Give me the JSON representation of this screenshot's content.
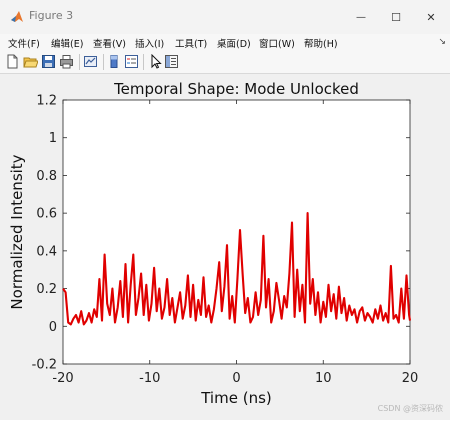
{
  "window": {
    "title": "Figure 3",
    "minimize_glyph": "—",
    "maximize_glyph": "☐",
    "close_glyph": "✕"
  },
  "menu": {
    "items": [
      {
        "id": "file",
        "label": "文件(F)"
      },
      {
        "id": "edit",
        "label": "编辑(E)"
      },
      {
        "id": "view",
        "label": "查看(V)"
      },
      {
        "id": "insert",
        "label": "插入(I)"
      },
      {
        "id": "tools",
        "label": "工具(T)"
      },
      {
        "id": "desktop",
        "label": "桌面(D)"
      },
      {
        "id": "window",
        "label": "窗口(W)"
      },
      {
        "id": "help",
        "label": "帮助(H)"
      }
    ],
    "overflow_glyph": "↘"
  },
  "toolbar": {
    "icons": [
      "new-figure-icon",
      "open-file-icon",
      "save-icon",
      "print-icon",
      "link-plot-icon",
      "insert-colorbar-icon",
      "insert-legend-icon",
      "edit-plot-icon",
      "property-inspector-icon"
    ]
  },
  "watermark": "CSDN @资深码侬",
  "chart_data": {
    "type": "line",
    "title": "Temporal Shape: Mode Unlocked",
    "xlabel": "Time (ns)",
    "ylabel": "Normalized Intensity",
    "xlim": [
      -20,
      20
    ],
    "ylim": [
      -0.2,
      1.2
    ],
    "xticks": [
      -20,
      -10,
      0,
      10,
      20
    ],
    "yticks": [
      -0.2,
      0,
      0.2,
      0.4,
      0.6,
      0.8,
      1,
      1.2
    ],
    "xtick_labels": [
      "-20",
      "-10",
      "0",
      "10",
      "20"
    ],
    "ytick_labels": [
      "-0.2",
      "0",
      "0.2",
      "0.4",
      "0.6",
      "0.8",
      "1",
      "1.2"
    ],
    "grid": false,
    "line_color": "#e00000",
    "series": [
      {
        "x": [
          -20,
          -19.7,
          -19.4,
          -19.1,
          -18.8,
          -18.5,
          -18.2,
          -17.9,
          -17.6,
          -17.3,
          -17.0,
          -16.7,
          -16.4,
          -16.1,
          -15.8,
          -15.5,
          -15.2,
          -14.9,
          -14.6,
          -14.3,
          -14.0,
          -13.7,
          -13.4,
          -13.1,
          -12.8,
          -12.5,
          -12.2,
          -11.9,
          -11.6,
          -11.3,
          -11.0,
          -10.7,
          -10.4,
          -10.1,
          -9.8,
          -9.5,
          -9.2,
          -8.9,
          -8.6,
          -8.3,
          -8.0,
          -7.7,
          -7.4,
          -7.1,
          -6.8,
          -6.5,
          -6.2,
          -5.9,
          -5.6,
          -5.3,
          -5.0,
          -4.7,
          -4.4,
          -4.1,
          -3.8,
          -3.5,
          -3.2,
          -2.9,
          -2.6,
          -2.3,
          -2.0,
          -1.7,
          -1.4,
          -1.1,
          -0.8,
          -0.5,
          -0.2,
          0.1,
          0.4,
          0.7,
          1.0,
          1.3,
          1.6,
          1.9,
          2.2,
          2.5,
          2.8,
          3.1,
          3.4,
          3.7,
          4.0,
          4.3,
          4.6,
          4.9,
          5.2,
          5.5,
          5.8,
          6.1,
          6.4,
          6.7,
          7.0,
          7.3,
          7.6,
          7.9,
          8.2,
          8.5,
          8.8,
          9.1,
          9.4,
          9.7,
          10.0,
          10.3,
          10.6,
          10.9,
          11.2,
          11.5,
          11.8,
          12.1,
          12.4,
          12.7,
          13.0,
          13.3,
          13.6,
          13.9,
          14.2,
          14.5,
          14.8,
          15.1,
          15.4,
          15.7,
          16.0,
          16.3,
          16.6,
          16.9,
          17.2,
          17.5,
          17.8,
          18.1,
          18.4,
          18.7,
          19.0,
          19.3,
          19.6,
          19.9,
          20.0
        ],
        "y": [
          0.2,
          0.18,
          0.02,
          0.01,
          0.04,
          0.06,
          0.02,
          0.08,
          0.01,
          0.03,
          0.07,
          0.02,
          0.09,
          0.05,
          0.25,
          0.03,
          0.38,
          0.12,
          0.06,
          0.2,
          0.02,
          0.1,
          0.24,
          0.05,
          0.33,
          0.02,
          0.22,
          0.38,
          0.06,
          0.15,
          0.28,
          0.06,
          0.22,
          0.03,
          0.12,
          0.31,
          0.08,
          0.2,
          0.04,
          0.1,
          0.25,
          0.06,
          0.15,
          0.02,
          0.1,
          0.18,
          0.04,
          0.11,
          0.27,
          0.05,
          0.22,
          0.03,
          0.14,
          0.06,
          0.26,
          0.05,
          0.11,
          0.02,
          0.09,
          0.2,
          0.34,
          0.08,
          0.21,
          0.43,
          0.04,
          0.16,
          0.02,
          0.25,
          0.51,
          0.28,
          0.07,
          0.15,
          0.02,
          0.05,
          0.18,
          0.06,
          0.14,
          0.48,
          0.1,
          0.25,
          0.02,
          0.08,
          0.23,
          0.14,
          0.04,
          0.16,
          0.1,
          0.28,
          0.55,
          0.05,
          0.3,
          0.08,
          0.22,
          0.02,
          0.6,
          0.12,
          0.25,
          0.06,
          0.18,
          0.02,
          0.13,
          0.05,
          0.22,
          0.08,
          0.17,
          0.04,
          0.21,
          0.07,
          0.15,
          0.03,
          0.11,
          0.06,
          0.09,
          0.02,
          0.08,
          0.1,
          0.03,
          0.07,
          0.05,
          0.02,
          0.09,
          0.04,
          0.11,
          0.03,
          0.07,
          0.02,
          0.32,
          0.04,
          0.06,
          0.02,
          0.2,
          0.04,
          0.27,
          0.06,
          0.03
        ]
      }
    ]
  }
}
